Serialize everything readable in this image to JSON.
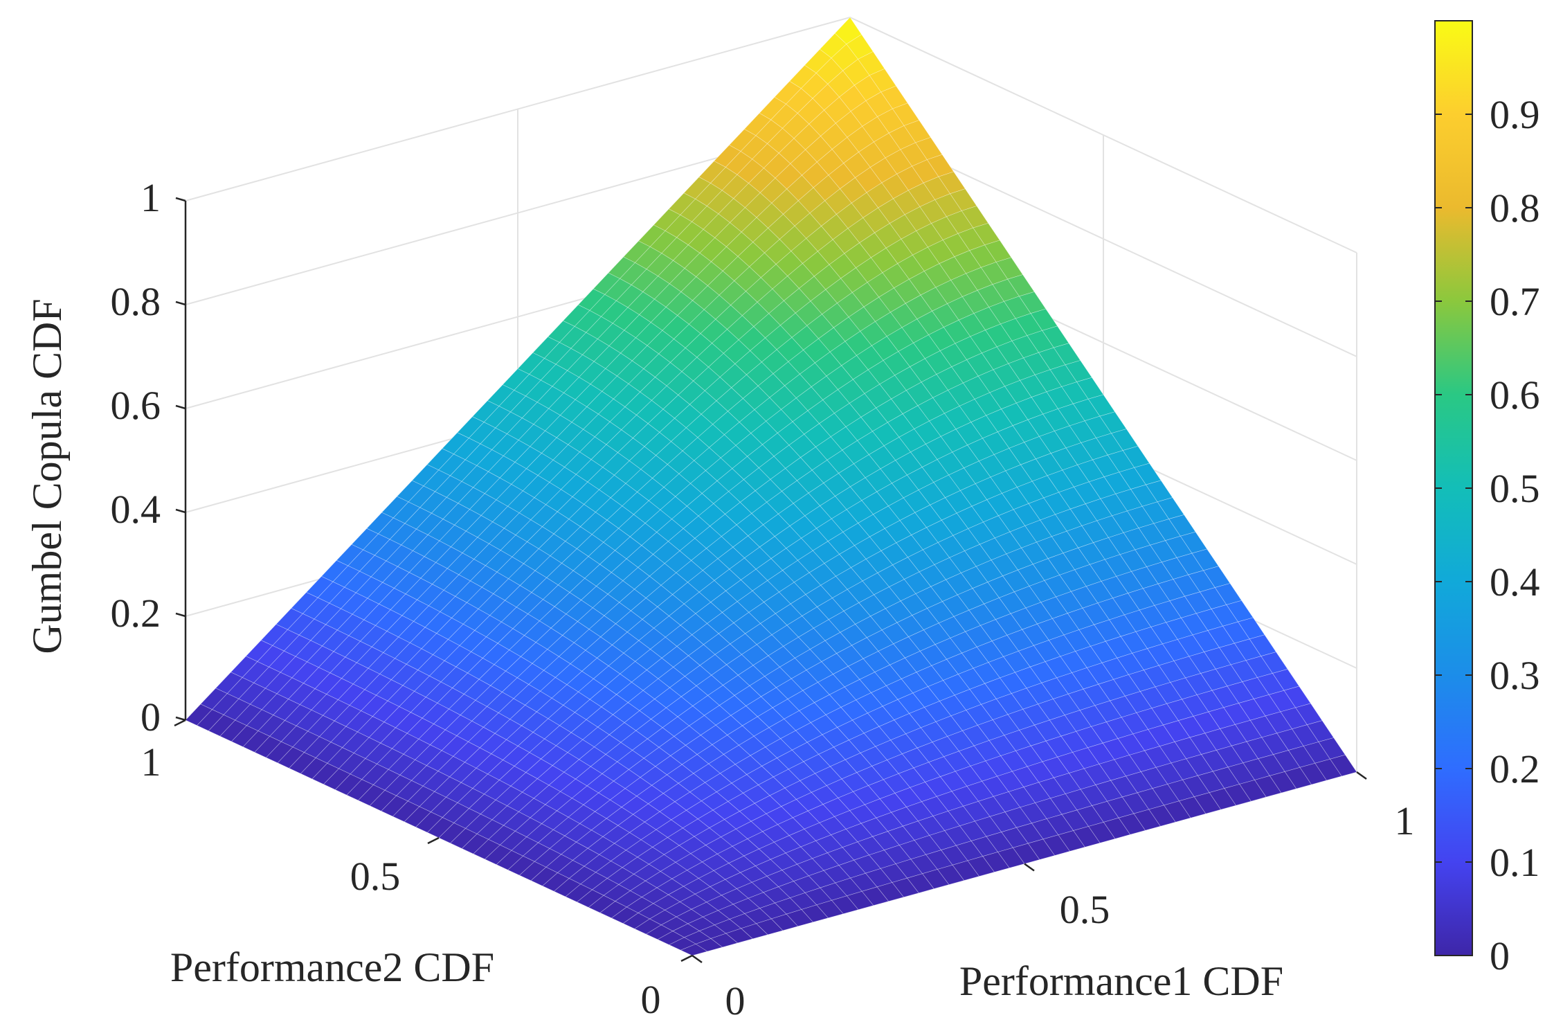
{
  "chart_data": {
    "type": "surface",
    "surface": "gumbel_copula_cdf",
    "xlabel": "Performance1 CDF",
    "ylabel": "Performance2 CDF",
    "zlabel": "Gumbel Copula CDF",
    "xlim": [
      0,
      1
    ],
    "ylim": [
      0,
      1
    ],
    "zlim": [
      0,
      1
    ],
    "x_ticks": [
      "0",
      "0.5",
      "1"
    ],
    "y_ticks": [
      "0",
      "0.5",
      "1"
    ],
    "z_ticks": [
      "0",
      "0.2",
      "0.4",
      "0.6",
      "0.8",
      "1"
    ],
    "colorbar": {
      "colormap": "parula",
      "range": [
        0,
        1
      ],
      "ticks": [
        "0",
        "0.1",
        "0.2",
        "0.3",
        "0.4",
        "0.5",
        "0.6",
        "0.7",
        "0.8",
        "0.9"
      ]
    },
    "grid": true,
    "colors": {
      "parula_low": "#3e26a8",
      "parula_mid": "#13beb8",
      "parula_high": "#f9fb15"
    }
  }
}
